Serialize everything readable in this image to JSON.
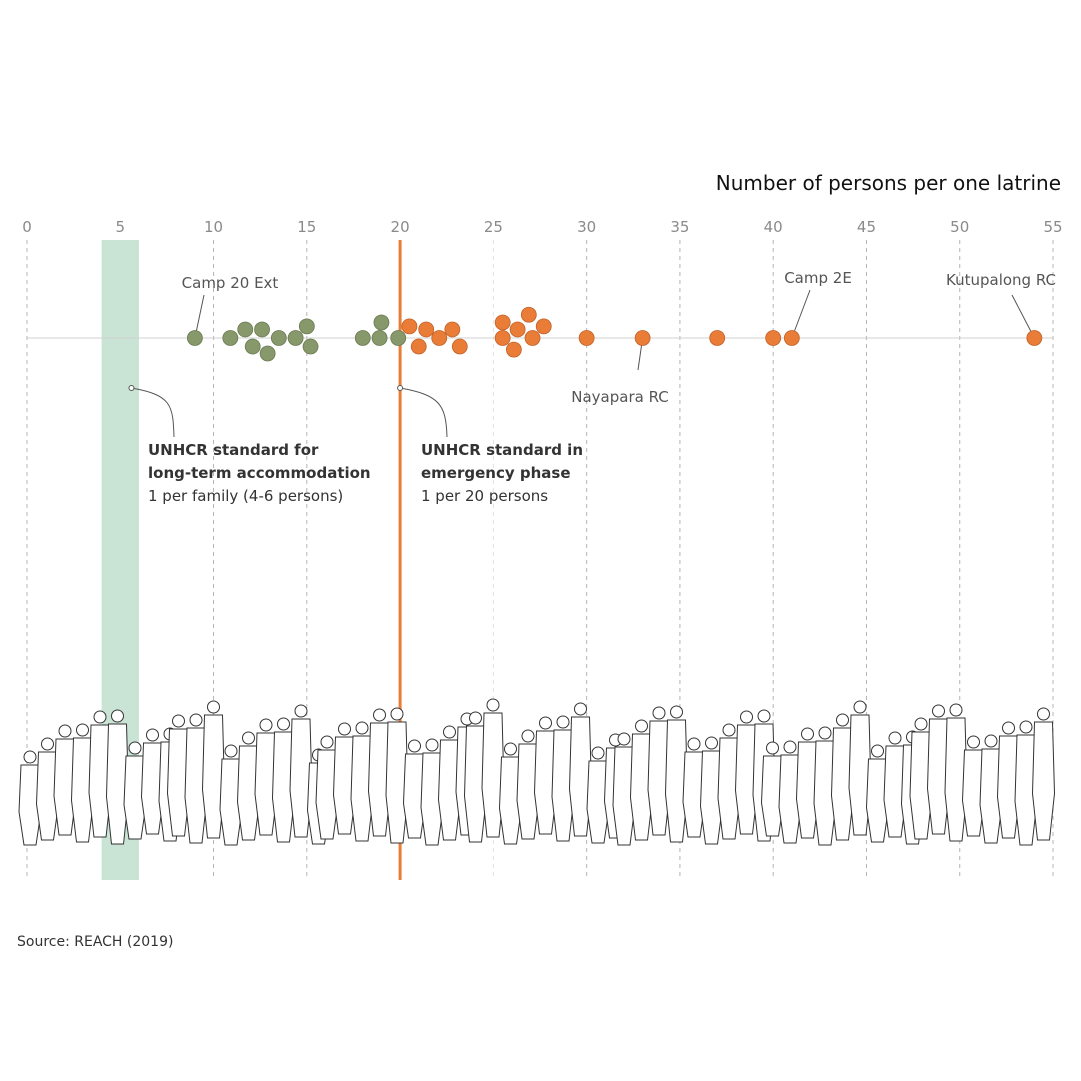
{
  "chart_data": {
    "type": "scatter",
    "subtype": "beeswarm",
    "title": "Number of persons per one latrine",
    "xlim": [
      0,
      55
    ],
    "x_ticks": [
      0,
      5,
      10,
      15,
      20,
      25,
      30,
      35,
      40,
      45,
      50,
      55
    ],
    "grid": "vertical dashed",
    "values": [
      9,
      10.9,
      11.7,
      12.1,
      12.6,
      12.9,
      13.5,
      14.4,
      15.0,
      15.2,
      18.0,
      18.9,
      19.0,
      19.9,
      20.5,
      21.0,
      21.4,
      22.1,
      22.8,
      23.2,
      25.5,
      25.5,
      26.1,
      26.3,
      26.9,
      27.1,
      27.7,
      30,
      33,
      37,
      40,
      41,
      54
    ],
    "colors": {
      "below_standard": "#87986a",
      "above_standard": "#e97c36",
      "band": "#c9e3d5",
      "standard_line": "#e97c36"
    },
    "point_labels": [
      {
        "text": "Camp 20 Ext",
        "value": 9
      },
      {
        "text": "Camp 2E",
        "value": 41
      },
      {
        "text": "Nayapara RC",
        "value": 33
      },
      {
        "text": "Kutupalong RC",
        "value": 54
      }
    ],
    "band": {
      "from": 4,
      "to": 6,
      "label_bold": "UNHCR standard for\nlong-term accommodation",
      "label": "1 per family (4-6 persons)"
    },
    "line": {
      "value": 20,
      "label_bold": "UNHCR standard in\nemergency phase",
      "label": "1 per 20 persons"
    }
  },
  "source": "Source: REACH (2019)"
}
